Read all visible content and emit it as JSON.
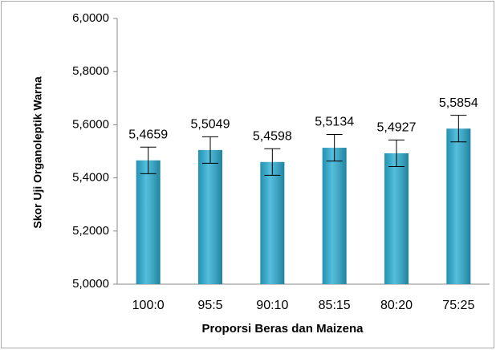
{
  "chart_data": {
    "type": "bar",
    "x_label": "Proporsi Beras dan Maizena",
    "y_label": "Skor Uji Organoleptik Warna",
    "categories": [
      "100:0",
      "95:5",
      "90:10",
      "85:15",
      "80:20",
      "75:25"
    ],
    "values": [
      5.4659,
      5.5049,
      5.4598,
      5.5134,
      5.4927,
      5.5854
    ],
    "value_labels": [
      "5,4659",
      "5,5049",
      "5,4598",
      "5,5134",
      "5,4927",
      "5,5854"
    ],
    "errors": [
      0.05,
      0.05,
      0.05,
      0.05,
      0.05,
      0.05
    ],
    "color": "#2aaed3",
    "ylim": [
      5.0,
      6.0
    ],
    "yticks": [
      {
        "value": 5.0,
        "label": "5,0000"
      },
      {
        "value": 5.2,
        "label": "5,2000"
      },
      {
        "value": 5.4,
        "label": "5,4000"
      },
      {
        "value": 5.6,
        "label": "5,6000"
      },
      {
        "value": 5.8,
        "label": "5,8000"
      },
      {
        "value": 6.0,
        "label": "6,0000"
      }
    ],
    "grid": false
  }
}
